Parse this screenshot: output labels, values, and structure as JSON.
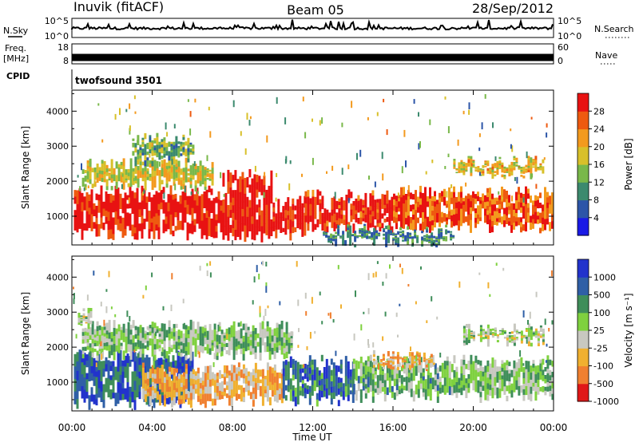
{
  "header": {
    "title": "Inuvik (fitACF)",
    "beam": "Beam 05",
    "date": "28/Sep/2012"
  },
  "status_panels": {
    "nsky_label": "N.Sky",
    "nsearch_label": "N.Search",
    "freq_label": "Freq.",
    "freq_unit": "[MHz]",
    "nave_label": "Nave",
    "cpid_label": "CPID",
    "cpid_value": "twofsound 3501",
    "noise_ticks": [
      "10^5",
      "10^0"
    ],
    "freq_ticks": [
      "18",
      "8"
    ],
    "nave_ticks": [
      "60",
      "0"
    ]
  },
  "chart_data": [
    {
      "type": "heatmap",
      "title": "",
      "xlabel": "",
      "ylabel": "Slant Range [km]",
      "x_ticks": [
        "00:00",
        "04:00",
        "08:00",
        "12:00",
        "16:00",
        "20:00",
        "00:00"
      ],
      "xlim_hours": [
        0,
        24
      ],
      "y_ticks": [
        1000,
        2000,
        3000,
        4000
      ],
      "ylim": [
        180,
        4600
      ],
      "colorbar": {
        "label": "Power [dB]",
        "ticks": [
          "4",
          "8",
          "12",
          "16",
          "20",
          "24",
          "28"
        ],
        "colors": [
          "#1a1ae6",
          "#2c55a8",
          "#3c8a6e",
          "#79b84a",
          "#d8c02a",
          "#f39a1e",
          "#ee5a10",
          "#e81212"
        ]
      },
      "bands": [
        {
          "t0": 0.1,
          "t1": 7.5,
          "r0": 500,
          "r1": 1700,
          "level": 0.95
        },
        {
          "t0": 7.5,
          "t1": 10.0,
          "r0": 400,
          "r1": 2200,
          "level": 1.0
        },
        {
          "t0": 10.0,
          "t1": 11.6,
          "r0": 500,
          "r1": 1400,
          "level": 0.95
        },
        {
          "t0": 11.6,
          "t1": 16.0,
          "r0": 700,
          "r1": 1600,
          "level": 0.9
        },
        {
          "t0": 16.0,
          "t1": 24.0,
          "r0": 700,
          "r1": 1700,
          "level": 0.82
        },
        {
          "t0": 0.5,
          "t1": 7.0,
          "r0": 1900,
          "r1": 2500,
          "level": 0.55
        },
        {
          "t0": 19.0,
          "t1": 23.5,
          "r0": 2250,
          "r1": 2550,
          "level": 0.6
        },
        {
          "t0": 3.0,
          "t1": 6.0,
          "r0": 2600,
          "r1": 3200,
          "level": 0.4
        },
        {
          "t0": 12.5,
          "t1": 19.0,
          "r0": 300,
          "r1": 600,
          "level": 0.3
        }
      ]
    },
    {
      "type": "heatmap",
      "title": "",
      "xlabel": "Time UT",
      "ylabel": "Slant Range [km]",
      "x_ticks": [
        "00:00",
        "04:00",
        "08:00",
        "12:00",
        "16:00",
        "20:00",
        "00:00"
      ],
      "xlim_hours": [
        0,
        24
      ],
      "y_ticks": [
        1000,
        2000,
        3000,
        4000
      ],
      "ylim": [
        180,
        4600
      ],
      "colorbar": {
        "label": "Velocity [m s⁻¹]",
        "ticks": [
          "1000",
          "500",
          "100",
          "25",
          "-25",
          "-100",
          "-500",
          "-1000"
        ],
        "colors": [
          "#2233cc",
          "#2f5fa6",
          "#3f8e5a",
          "#7fd13f",
          "#c8c8c0",
          "#f0b030",
          "#f08030",
          "#e01818"
        ]
      },
      "bands": [
        {
          "t0": 0.1,
          "t1": 6.0,
          "r0": 400,
          "r1": 1750,
          "level": 0.2
        },
        {
          "t0": 3.5,
          "t1": 10.5,
          "r0": 450,
          "r1": 1400,
          "level": 0.68
        },
        {
          "t0": 10.5,
          "t1": 14.0,
          "r0": 500,
          "r1": 1600,
          "level": 0.22
        },
        {
          "t0": 14.0,
          "t1": 19.0,
          "r0": 600,
          "r1": 1600,
          "level": 0.4
        },
        {
          "t0": 19.0,
          "t1": 24.0,
          "r0": 600,
          "r1": 1600,
          "level": 0.45
        },
        {
          "t0": 0.5,
          "t1": 11.0,
          "r0": 1800,
          "r1": 2600,
          "level": 0.45
        },
        {
          "t0": 19.5,
          "t1": 23.5,
          "r0": 2200,
          "r1": 2500,
          "level": 0.5
        },
        {
          "t0": 0.3,
          "t1": 1.0,
          "r0": 2600,
          "r1": 3000,
          "level": 0.5
        },
        {
          "t0": 15.0,
          "t1": 18.0,
          "r0": 1500,
          "r1": 1750,
          "level": 0.7
        }
      ]
    }
  ]
}
